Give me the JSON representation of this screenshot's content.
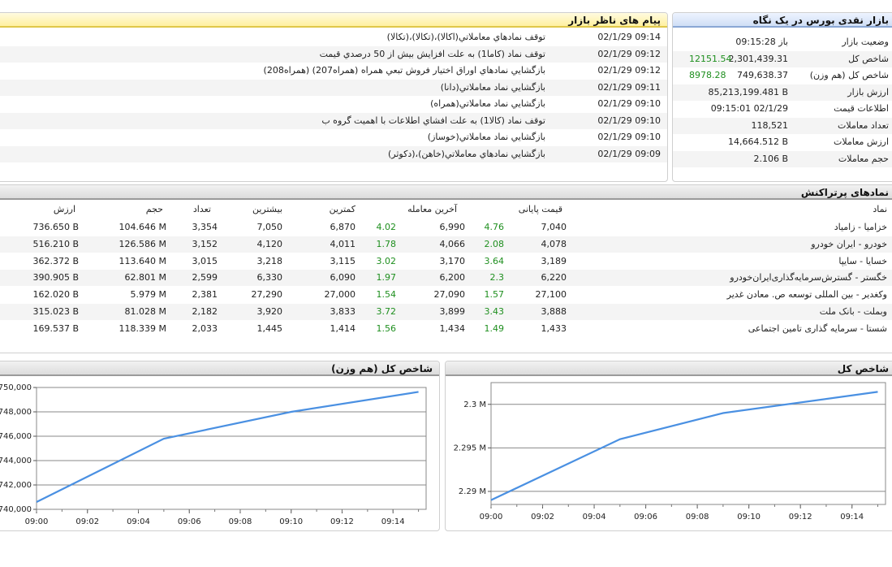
{
  "messages": {
    "title": "پیام های ناظر بازار",
    "items": [
      {
        "time": "02/1/29 09:14",
        "text": "توقف نمادهاي معاملاتي(اكالا)،(تكالا)،(تكالا)"
      },
      {
        "time": "02/1/29 09:12",
        "text": "توقف نماد (كاما1) به علت افزايش بيش از 50 درصدي قيمت"
      },
      {
        "time": "02/1/29 09:12",
        "text": "بازگشايي نمادهاي اوراق اختيار فروش تبعي همراه (همراه207) (همراه208)"
      },
      {
        "time": "02/1/29 09:11",
        "text": "بازگشايي نماد معاملاتي(دانا)"
      },
      {
        "time": "02/1/29 09:10",
        "text": "بازگشايي نماد معاملاتي(همراه)"
      },
      {
        "time": "02/1/29 09:10",
        "text": "توقف نماد (كالا1) به علت افشاي اطلاعات با اهميت گروه ب"
      },
      {
        "time": "02/1/29 09:10",
        "text": "بازگشايي نماد معاملاتي(خوساز)"
      },
      {
        "time": "02/1/29 09:09",
        "text": "بازگشايي نمادهاي معاملاتي(خاهن)،(دكوثر)"
      }
    ]
  },
  "market": {
    "title": "بازار نقدی بورس در یک نگاه",
    "rows": [
      {
        "label": "وضعیت بازار",
        "value": "باز 09:15:28",
        "change": ""
      },
      {
        "label": "شاخص کل",
        "value": "2,301,439.31",
        "change": "12151.54"
      },
      {
        "label": "شاخص کل (هم وزن)",
        "value": "749,638.37",
        "change": "8978.28"
      },
      {
        "label": "ارزش بازار",
        "value": "85,213,199.481 B",
        "change": ""
      },
      {
        "label": "اطلاعات قیمت",
        "value": "09:15:01 02/1/29",
        "change": ""
      },
      {
        "label": "تعداد معاملات",
        "value": "118,521",
        "change": ""
      },
      {
        "label": "ارزش معاملات",
        "value": "14,664.512 B",
        "change": ""
      },
      {
        "label": "حجم معاملات",
        "value": "2.106 B",
        "change": ""
      }
    ]
  },
  "active": {
    "title": "نمادهای پرتراکنش",
    "headers": {
      "symbol": "نماد",
      "final_price": "قیمت پایانی",
      "last_trade": "آخرین معامله",
      "min": "کمترین",
      "max": "بیشترین",
      "count": "تعداد",
      "volume": "حجم",
      "value": "ارزش"
    },
    "rows": [
      {
        "symbol": "خزامیا - زامیاد",
        "final": "7,040",
        "final_pct": "4.76",
        "last": "6,990",
        "last_pct": "4.02",
        "min": "6,870",
        "max": "7,050",
        "count": "3,354",
        "volume": "104.646 M",
        "value": "736.650 B"
      },
      {
        "symbol": "خودرو - ایران‌ خودرو",
        "final": "4,078",
        "final_pct": "2.08",
        "last": "4,066",
        "last_pct": "1.78",
        "min": "4,011",
        "max": "4,120",
        "count": "3,152",
        "volume": "126.586 M",
        "value": "516.210 B"
      },
      {
        "symbol": "خسایا - سایپا",
        "final": "3,189",
        "final_pct": "3.64",
        "last": "3,170",
        "last_pct": "3.02",
        "min": "3,115",
        "max": "3,218",
        "count": "3,015",
        "volume": "113.640 M",
        "value": "362.372 B"
      },
      {
        "symbol": "خگستر - گسترش‌سرمایه‌گذاری‌ایران‌خودرو",
        "final": "6,220",
        "final_pct": "2.3",
        "last": "6,200",
        "last_pct": "1.97",
        "min": "6,090",
        "max": "6,330",
        "count": "2,599",
        "volume": "62.801 M",
        "value": "390.905 B"
      },
      {
        "symbol": "وکغدیر - بین المللی توسعه ص. معادن غدیر",
        "final": "27,100",
        "final_pct": "1.57",
        "last": "27,090",
        "last_pct": "1.54",
        "min": "27,000",
        "max": "27,290",
        "count": "2,381",
        "volume": "5.979 M",
        "value": "162.020 B"
      },
      {
        "symbol": "وبملت - بانک ملت",
        "final": "3,888",
        "final_pct": "3.43",
        "last": "3,899",
        "last_pct": "3.72",
        "min": "3,833",
        "max": "3,920",
        "count": "2,182",
        "volume": "81.028 M",
        "value": "315.023 B"
      },
      {
        "symbol": "شستا - سرمایه گذاری تامین اجتماعی",
        "final": "1,433",
        "final_pct": "1.49",
        "last": "1,434",
        "last_pct": "1.56",
        "min": "1,414",
        "max": "1,445",
        "count": "2,033",
        "volume": "118.339 M",
        "value": "169.537 B"
      }
    ]
  },
  "chart_data": [
    {
      "type": "line",
      "title": "شاخص کل",
      "x": [
        "09:00",
        "09:05",
        "09:09",
        "09:15"
      ],
      "x_minutes": [
        0,
        5,
        9,
        15
      ],
      "series": [
        {
          "values": [
            2289000,
            2296000,
            2299000,
            2301439.31
          ]
        }
      ],
      "x_ticks": [
        "09:00",
        "09:02",
        "09:04",
        "09:06",
        "09:08",
        "09:10",
        "09:12",
        "09:14"
      ],
      "y_ticks": [
        2290000,
        2295000,
        2300000
      ],
      "y_tick_labels": [
        "2.29 M",
        "2.295 M",
        "2.3 M"
      ],
      "ylim": [
        2288500,
        2302500
      ],
      "color": "#4a90e2",
      "grid": true
    },
    {
      "type": "line",
      "title": "شاخص کل (هم وزن)",
      "x": [
        "09:00",
        "09:05",
        "09:10",
        "09:15"
      ],
      "x_minutes": [
        0,
        5,
        10,
        15
      ],
      "series": [
        {
          "values": [
            740600,
            745800,
            748000,
            749638.37
          ]
        }
      ],
      "x_ticks": [
        "09:00",
        "09:02",
        "09:04",
        "09:06",
        "09:08",
        "09:10",
        "09:12",
        "09:14"
      ],
      "y_ticks": [
        740000,
        742000,
        744000,
        746000,
        748000,
        750000
      ],
      "y_tick_labels": [
        "740,000",
        "742,000",
        "744,000",
        "746,000",
        "748,000",
        "750,000"
      ],
      "ylim": [
        740000,
        750000
      ],
      "color": "#4a90e2",
      "grid": true
    }
  ]
}
